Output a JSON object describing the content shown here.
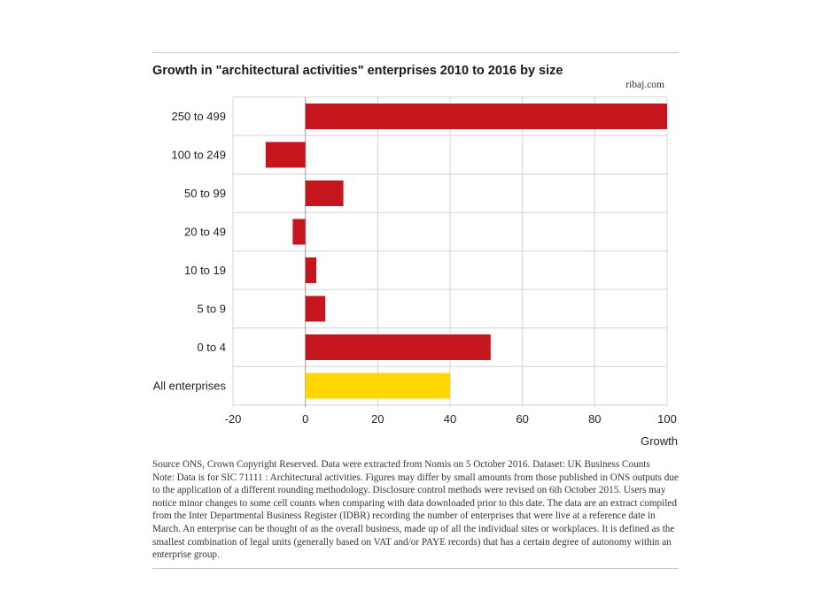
{
  "header": {
    "title": "Growth in \"architectural activities\" enterprises 2010 to 2016 by size",
    "credit": "ribaj.com"
  },
  "chart_data": {
    "type": "bar",
    "orientation": "horizontal",
    "title": "Growth in \"architectural activities\" enterprises 2010 to 2016 by size",
    "xlabel": "Growth",
    "ylabel": "",
    "xlim": [
      -20,
      100
    ],
    "xticks": [
      -20,
      0,
      20,
      40,
      60,
      80,
      100
    ],
    "grid": true,
    "legend": "none",
    "categories": [
      "250 to 499",
      "100 to 249",
      "50 to 99",
      "20 to 49",
      "10 to 19",
      "5 to 9",
      "0 to 4",
      "All enterprises"
    ],
    "values": [
      100,
      -11,
      10.5,
      -3.5,
      3,
      5.5,
      51.2,
      40
    ],
    "colors": [
      "#c4161c",
      "#c4161c",
      "#c4161c",
      "#c4161c",
      "#c4161c",
      "#c4161c",
      "#c4161c",
      "#ffd600"
    ]
  },
  "notes": {
    "source": "Source ONS, Crown Copyright Reserved. Data were extracted from Nomis on 5 October 2016. Dataset: UK Business Counts",
    "note": "Note: Data is for SIC 71111 : Architectural activities. Figures may differ by small amounts from those published in ONS outputs due to the application of a different rounding methodology. Disclosure control methods were revised on 6th October 2015. Users may notice minor changes to some cell counts when comparing with data downloaded prior to this date. The data are an extract compiled from the Inter Departmental Business Register (IDBR) recording the number of enterprises that were live at a reference date in March. An enterprise can be thought of as the overall business, made up of all the individual sites or workplaces. It is defined as the smallest combination of legal units (generally based on VAT and/or PAYE records) that has a certain degree of autonomy within an enterprise group."
  }
}
